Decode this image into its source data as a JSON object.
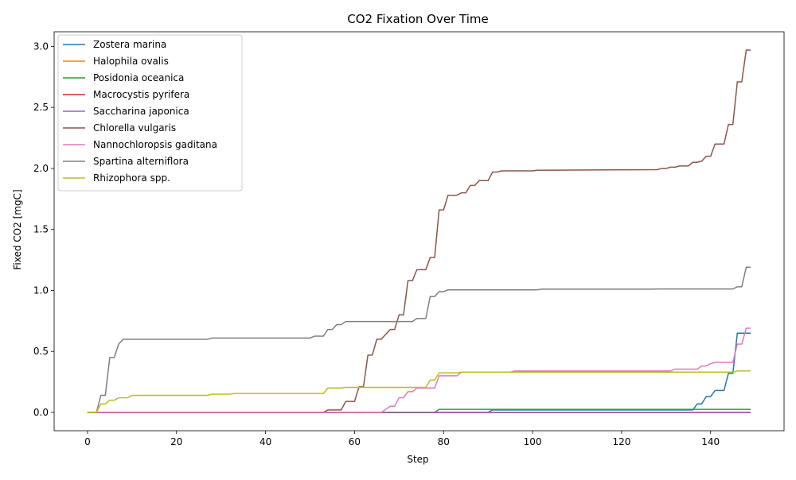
{
  "chart_data": {
    "type": "line",
    "title": "CO2 Fixation Over Time",
    "xlabel": "Step",
    "ylabel": "Fixed CO2 [mgC]",
    "xlim": [
      -7.5,
      156.5
    ],
    "ylim": [
      -0.15,
      3.12
    ],
    "xticks": [
      0,
      20,
      40,
      60,
      80,
      100,
      120,
      140
    ],
    "yticks": [
      "0.0",
      "0.5",
      "1.0",
      "1.5",
      "2.0",
      "2.5",
      "3.0"
    ],
    "grid": false,
    "legend_position": "top-left",
    "series": [
      {
        "name": "Zostera marina",
        "color": "#1f77b4",
        "points": [
          [
            0,
            0
          ],
          [
            90,
            0
          ],
          [
            91,
            0.02
          ],
          [
            136,
            0.02
          ],
          [
            137,
            0.07
          ],
          [
            138,
            0.07
          ],
          [
            139,
            0.13
          ],
          [
            140,
            0.13
          ],
          [
            141,
            0.18
          ],
          [
            143,
            0.18
          ],
          [
            144,
            0.32
          ],
          [
            145,
            0.32
          ],
          [
            146,
            0.65
          ],
          [
            149,
            0.65
          ]
        ]
      },
      {
        "name": "Halophila ovalis",
        "color": "#ff7f0e",
        "points": [
          [
            0,
            0
          ],
          [
            149,
            0
          ]
        ]
      },
      {
        "name": "Posidonia oceanica",
        "color": "#2ca02c",
        "points": [
          [
            0,
            0
          ],
          [
            78,
            0
          ],
          [
            79,
            0.025
          ],
          [
            149,
            0.025
          ]
        ]
      },
      {
        "name": "Macrocystis pyrifera",
        "color": "#d62728",
        "points": [
          [
            0,
            0
          ],
          [
            149,
            0
          ]
        ]
      },
      {
        "name": "Saccharina japonica",
        "color": "#9467bd",
        "points": [
          [
            0,
            0
          ],
          [
            149,
            0
          ]
        ]
      },
      {
        "name": "Chlorella vulgaris",
        "color": "#8c564b",
        "points": [
          [
            0,
            0
          ],
          [
            53,
            0
          ],
          [
            54,
            0.02
          ],
          [
            57,
            0.02
          ],
          [
            58,
            0.09
          ],
          [
            60,
            0.09
          ],
          [
            61,
            0.21
          ],
          [
            62,
            0.21
          ],
          [
            63,
            0.47
          ],
          [
            64,
            0.47
          ],
          [
            65,
            0.6
          ],
          [
            66,
            0.6
          ],
          [
            68,
            0.68
          ],
          [
            69,
            0.68
          ],
          [
            70,
            0.8
          ],
          [
            71,
            0.8
          ],
          [
            72,
            1.08
          ],
          [
            73,
            1.08
          ],
          [
            74,
            1.17
          ],
          [
            76,
            1.17
          ],
          [
            77,
            1.27
          ],
          [
            78,
            1.27
          ],
          [
            79,
            1.66
          ],
          [
            80,
            1.66
          ],
          [
            81,
            1.78
          ],
          [
            83,
            1.78
          ],
          [
            84,
            1.8
          ],
          [
            85,
            1.8
          ],
          [
            86,
            1.86
          ],
          [
            87,
            1.86
          ],
          [
            88,
            1.9
          ],
          [
            90,
            1.9
          ],
          [
            91,
            1.97
          ],
          [
            92,
            1.97
          ],
          [
            93,
            1.98
          ],
          [
            100,
            1.98
          ],
          [
            101,
            1.985
          ],
          [
            128,
            1.99
          ],
          [
            129,
            2.0
          ],
          [
            130,
            2.0
          ],
          [
            131,
            2.01
          ],
          [
            132,
            2.01
          ],
          [
            133,
            2.02
          ],
          [
            135,
            2.02
          ],
          [
            136,
            2.05
          ],
          [
            137,
            2.05
          ],
          [
            138,
            2.06
          ],
          [
            139,
            2.1
          ],
          [
            140,
            2.1
          ],
          [
            141,
            2.2
          ],
          [
            143,
            2.2
          ],
          [
            144,
            2.36
          ],
          [
            145,
            2.36
          ],
          [
            146,
            2.71
          ],
          [
            147,
            2.71
          ],
          [
            148,
            2.97
          ],
          [
            149,
            2.97
          ]
        ]
      },
      {
        "name": "Nannochloropsis gaditana",
        "color": "#e377c2",
        "points": [
          [
            0,
            0
          ],
          [
            66,
            0
          ],
          [
            68,
            0.05
          ],
          [
            69,
            0.05
          ],
          [
            70,
            0.12
          ],
          [
            71,
            0.12
          ],
          [
            72,
            0.17
          ],
          [
            73,
            0.17
          ],
          [
            74,
            0.2
          ],
          [
            78,
            0.2
          ],
          [
            79,
            0.3
          ],
          [
            83,
            0.3
          ],
          [
            84,
            0.33
          ],
          [
            95,
            0.33
          ],
          [
            96,
            0.34
          ],
          [
            131,
            0.34
          ],
          [
            132,
            0.355
          ],
          [
            137,
            0.355
          ],
          [
            138,
            0.38
          ],
          [
            139,
            0.38
          ],
          [
            140,
            0.4
          ],
          [
            141,
            0.41
          ],
          [
            145,
            0.41
          ],
          [
            146,
            0.56
          ],
          [
            147,
            0.56
          ],
          [
            148,
            0.69
          ],
          [
            149,
            0.69
          ]
        ]
      },
      {
        "name": "Spartina alterniflora",
        "color": "#7f7f7f",
        "points": [
          [
            0,
            0
          ],
          [
            2,
            0
          ],
          [
            3,
            0.14
          ],
          [
            4,
            0.14
          ],
          [
            5,
            0.45
          ],
          [
            6,
            0.45
          ],
          [
            7,
            0.56
          ],
          [
            8,
            0.6
          ],
          [
            27,
            0.6
          ],
          [
            28,
            0.61
          ],
          [
            50,
            0.61
          ],
          [
            51,
            0.625
          ],
          [
            53,
            0.625
          ],
          [
            54,
            0.68
          ],
          [
            55,
            0.68
          ],
          [
            56,
            0.72
          ],
          [
            57,
            0.72
          ],
          [
            58,
            0.745
          ],
          [
            73,
            0.745
          ],
          [
            74,
            0.77
          ],
          [
            76,
            0.77
          ],
          [
            77,
            0.95
          ],
          [
            78,
            0.95
          ],
          [
            79,
            0.99
          ],
          [
            80,
            0.99
          ],
          [
            81,
            1.005
          ],
          [
            101,
            1.005
          ],
          [
            102,
            1.01
          ],
          [
            127,
            1.01
          ],
          [
            128,
            1.012
          ],
          [
            145,
            1.012
          ],
          [
            146,
            1.03
          ],
          [
            147,
            1.03
          ],
          [
            148,
            1.19
          ],
          [
            149,
            1.19
          ]
        ]
      },
      {
        "name": "Rhizophora spp.",
        "color": "#bcbd22",
        "points": [
          [
            0,
            0
          ],
          [
            2,
            0
          ],
          [
            3,
            0.07
          ],
          [
            4,
            0.07
          ],
          [
            5,
            0.1
          ],
          [
            6,
            0.1
          ],
          [
            7,
            0.12
          ],
          [
            9,
            0.12
          ],
          [
            10,
            0.14
          ],
          [
            27,
            0.14
          ],
          [
            28,
            0.15
          ],
          [
            32,
            0.15
          ],
          [
            33,
            0.155
          ],
          [
            53,
            0.155
          ],
          [
            54,
            0.2
          ],
          [
            57,
            0.2
          ],
          [
            58,
            0.205
          ],
          [
            76,
            0.205
          ],
          [
            77,
            0.265
          ],
          [
            78,
            0.265
          ],
          [
            79,
            0.325
          ],
          [
            83,
            0.325
          ],
          [
            84,
            0.33
          ],
          [
            145,
            0.33
          ],
          [
            146,
            0.34
          ],
          [
            149,
            0.34
          ]
        ]
      }
    ]
  }
}
